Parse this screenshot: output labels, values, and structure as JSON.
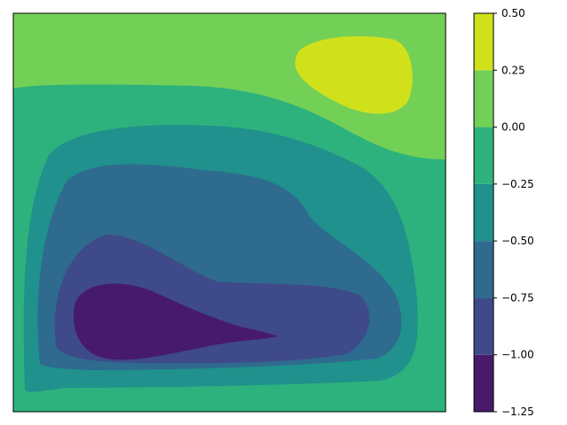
{
  "chart_data": {
    "type": "contourf",
    "x_ticks_shown": false,
    "y_ticks_shown": false,
    "colormap": "viridis",
    "levels": [
      -1.25,
      -1.0,
      -0.75,
      -0.5,
      -0.25,
      0.0,
      0.25,
      0.5
    ],
    "band_colors": [
      "#481a6c",
      "#3e4a89",
      "#2e6b8e",
      "#20918c",
      "#2db27d",
      "#73d056",
      "#d0e11c"
    ],
    "colorbar": {
      "ticks": [
        -1.25,
        -1.0,
        -0.75,
        -0.5,
        -0.25,
        0.0,
        0.25,
        0.5
      ],
      "tick_labels": [
        "−1.25",
        "−1.00",
        "−0.75",
        "−0.50",
        "−0.25",
        "0.00",
        "0.25",
        "0.50"
      ]
    },
    "regions": [
      {
        "level_range": [
          0.0,
          0.25
        ],
        "description": "background top band"
      },
      {
        "level_range": [
          0.25,
          0.5
        ],
        "description": "maximum, upper right"
      },
      {
        "level_range": [
          -0.25,
          0.0
        ]
      },
      {
        "level_range": [
          -0.5,
          -0.25
        ]
      },
      {
        "level_range": [
          -0.75,
          -0.5
        ]
      },
      {
        "level_range": [
          -1.0,
          -0.75
        ]
      },
      {
        "level_range": [
          -1.25,
          -1.0
        ],
        "description": "minimum, lower left"
      }
    ]
  }
}
